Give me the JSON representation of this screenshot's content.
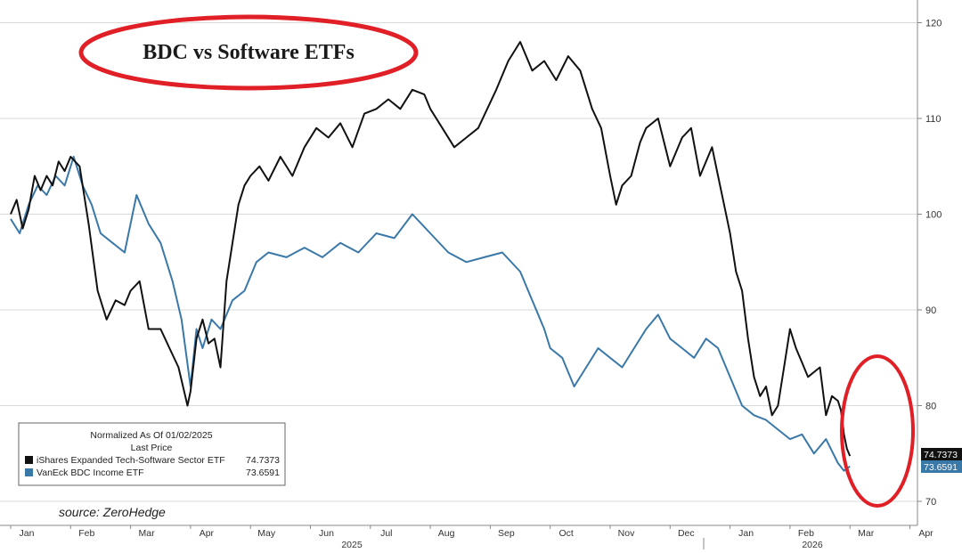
{
  "chart_data": {
    "type": "line",
    "title": "BDC vs Software ETFs",
    "source_note": "source: ZeroHedge",
    "legend": {
      "header": "Normalized As Of 01/02/2025",
      "subheader": "Last Price",
      "placement": "bottom-left",
      "entries": [
        {
          "label": "iShares Expanded Tech-Software Sector ETF",
          "value": "74.7373",
          "color": "#111111"
        },
        {
          "label": "VanEck BDC Income ETF",
          "value": "73.6591",
          "color": "#3a78a8"
        }
      ]
    },
    "y_axis": {
      "side": "right",
      "ylim": [
        68,
        122
      ],
      "ticks": [
        "70",
        "80",
        "90",
        "100",
        "110",
        "120"
      ]
    },
    "x_axis": {
      "month_labels": [
        "Jan",
        "Feb",
        "Mar",
        "Apr",
        "May",
        "Jun",
        "Jul",
        "Aug",
        "Sep",
        "Oct",
        "Nov",
        "Dec",
        "Jan",
        "Feb",
        "Mar",
        "Apr"
      ],
      "year_labels": [
        "2025",
        "2026"
      ]
    },
    "last_price_labels": [
      {
        "text": "74.7373",
        "value": 74.7373,
        "bg": "#111111",
        "color": "#ffffff"
      },
      {
        "text": "73.6591",
        "value": 73.6591,
        "bg": "#3a78a8",
        "color": "#ffffff"
      }
    ],
    "series": [
      {
        "name": "iShares Expanded Tech-Software Sector ETF",
        "color": "#111111",
        "x": [
          0,
          0.1,
          0.2,
          0.3,
          0.4,
          0.5,
          0.6,
          0.7,
          0.8,
          0.9,
          1.0,
          1.15,
          1.3,
          1.45,
          1.6,
          1.75,
          1.9,
          2.0,
          2.15,
          2.3,
          2.5,
          2.65,
          2.8,
          2.95,
          3.0,
          3.1,
          3.2,
          3.3,
          3.4,
          3.5,
          3.6,
          3.7,
          3.8,
          3.9,
          4.0,
          4.15,
          4.3,
          4.5,
          4.7,
          4.9,
          5.1,
          5.3,
          5.5,
          5.7,
          5.9,
          6.1,
          6.3,
          6.5,
          6.7,
          6.9,
          7.0,
          7.2,
          7.4,
          7.6,
          7.8,
          7.95,
          8.1,
          8.3,
          8.5,
          8.7,
          8.9,
          9.1,
          9.3,
          9.5,
          9.7,
          9.85,
          10.0,
          10.1,
          10.2,
          10.35,
          10.5,
          10.6,
          10.8,
          11.0,
          11.2,
          11.35,
          11.5,
          11.7,
          11.8,
          11.9,
          12.0,
          12.1,
          12.2,
          12.3,
          12.4,
          12.5,
          12.6,
          12.7,
          12.8,
          12.9,
          13.0,
          13.1,
          13.2,
          13.3,
          13.4,
          13.5,
          13.6,
          13.7,
          13.8,
          13.85,
          13.9,
          13.95,
          14.0
        ],
        "values": [
          100,
          101.5,
          98.5,
          100.5,
          104,
          102.5,
          104,
          103,
          105.5,
          104.5,
          106,
          105,
          99,
          92,
          89,
          91,
          90.5,
          92,
          93,
          88,
          88,
          86,
          84,
          80,
          81.5,
          87,
          89,
          86.5,
          87,
          84,
          93,
          97,
          101,
          103,
          104,
          105,
          103.5,
          106,
          104,
          107,
          109,
          108,
          109.5,
          107,
          110.5,
          111,
          112,
          111,
          113,
          112.5,
          111,
          109,
          107,
          108,
          109,
          111,
          113,
          116,
          118,
          115,
          116,
          114,
          116.5,
          115,
          111,
          109,
          104,
          101,
          103,
          104,
          107.5,
          109,
          110,
          105,
          108,
          109,
          104,
          107,
          104,
          101,
          98,
          94,
          92,
          87,
          83,
          81,
          82,
          79,
          80,
          84,
          88,
          86,
          84.5,
          83,
          83.5,
          84,
          79,
          81,
          80.5,
          79.5,
          77,
          75.5,
          74.7373
        ]
      },
      {
        "name": "VanEck BDC Income ETF",
        "color": "#3a78a8",
        "x": [
          0,
          0.15,
          0.3,
          0.45,
          0.6,
          0.75,
          0.9,
          1.05,
          1.2,
          1.35,
          1.5,
          1.7,
          1.9,
          2.1,
          2.3,
          2.5,
          2.7,
          2.85,
          3.0,
          3.1,
          3.2,
          3.35,
          3.5,
          3.7,
          3.9,
          4.1,
          4.3,
          4.6,
          4.9,
          5.2,
          5.5,
          5.8,
          6.1,
          6.4,
          6.7,
          7.0,
          7.3,
          7.6,
          7.9,
          8.2,
          8.5,
          8.7,
          8.9,
          9.0,
          9.2,
          9.4,
          9.6,
          9.8,
          10.0,
          10.2,
          10.4,
          10.6,
          10.8,
          11.0,
          11.2,
          11.4,
          11.6,
          11.8,
          12.0,
          12.2,
          12.4,
          12.6,
          12.8,
          13.0,
          13.2,
          13.4,
          13.6,
          13.8,
          13.9,
          14.0
        ],
        "values": [
          99.5,
          98,
          101,
          103,
          102,
          104,
          103,
          106,
          103,
          101,
          98,
          97,
          96,
          102,
          99,
          97,
          93,
          89,
          82,
          88,
          86,
          89,
          88,
          91,
          92,
          95,
          96,
          95.5,
          96.5,
          95.5,
          97,
          96,
          98,
          97.5,
          100,
          98,
          96,
          95,
          95.5,
          96,
          94,
          91,
          88,
          86,
          85,
          82,
          84,
          86,
          85,
          84,
          86,
          88,
          89.5,
          87,
          86,
          85,
          87,
          86,
          83,
          80,
          79,
          78.5,
          77.5,
          76.5,
          77,
          75,
          76.5,
          74,
          73.2,
          73.6591
        ]
      }
    ]
  }
}
